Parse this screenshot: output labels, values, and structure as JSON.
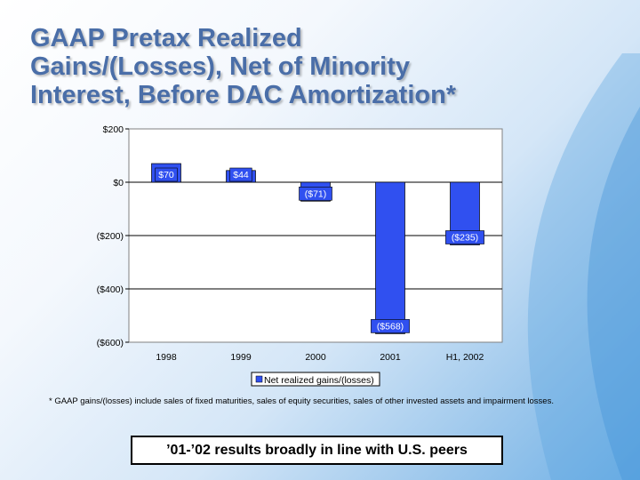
{
  "slide": {
    "title_lines": [
      "GAAP Pretax Realized",
      "Gains/(Losses), Net of Minority",
      "Interest, Before DAC Amortization*"
    ],
    "footnote": "* GAAP gains/(losses) include sales of fixed maturities, sales of equity securities, sales of other invested assets and impairment losses.",
    "callout": "’01-’02 results broadly in line with U.S. peers"
  },
  "colors": {
    "bar": "#3050f0",
    "title": "#4a6ea8"
  },
  "chart_data": {
    "type": "bar",
    "title": "",
    "xlabel": "",
    "ylabel": "",
    "categories": [
      "1998",
      "1999",
      "2000",
      "2001",
      "H1, 2002"
    ],
    "series": [
      {
        "name": "Net realized gains/(losses)",
        "values": [
          70,
          44,
          -71,
          -568,
          -235
        ],
        "labels": [
          "$70",
          "$44",
          "($71)",
          "($568)",
          "($235)"
        ]
      }
    ],
    "ylim": [
      -600,
      200
    ],
    "yticks": [
      200,
      0,
      -200,
      -400,
      -600
    ],
    "ytick_labels": [
      "$200",
      "$0",
      "($200)",
      "($400)",
      "($600)"
    ],
    "grid": true,
    "legend": "bottom-center"
  }
}
